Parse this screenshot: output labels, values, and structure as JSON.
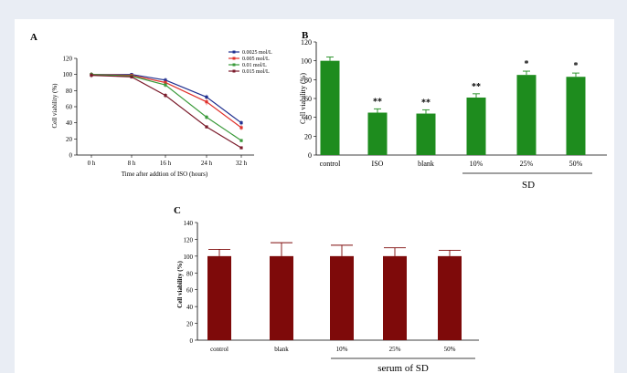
{
  "chart_data": [
    {
      "panel": "A",
      "type": "line",
      "xlabel": "Time after addtion of ISO (hours)",
      "ylabel": "Cell viability (%)",
      "categories": [
        "0 h",
        "8 h",
        "16 h",
        "24 h",
        "32 h"
      ],
      "ylim": [
        0,
        120
      ],
      "yticks": [
        0,
        20,
        40,
        60,
        80,
        100,
        120
      ],
      "legend_position": "top-right",
      "series": [
        {
          "name": "0.0025 mol/L",
          "color": "#1f2f8f",
          "values": [
            100,
            100,
            93,
            72,
            40
          ],
          "errors": [
            3,
            2,
            3,
            3,
            3
          ]
        },
        {
          "name": "0.005 mol/L",
          "color": "#e0302a",
          "values": [
            100,
            99,
            90,
            66,
            34
          ],
          "errors": [
            3,
            2,
            3,
            4,
            3
          ]
        },
        {
          "name": "0.01 mol/L",
          "color": "#3a9a3a",
          "values": [
            100,
            98,
            87,
            47,
            18
          ],
          "errors": [
            3,
            2,
            3,
            3,
            2
          ]
        },
        {
          "name": "0.015 mol/L",
          "color": "#7a1a2a",
          "values": [
            99,
            97,
            74,
            35,
            9
          ],
          "errors": [
            3,
            2,
            3,
            2,
            1
          ]
        }
      ]
    },
    {
      "panel": "B",
      "type": "bar",
      "ylabel": "Cell viability (%)",
      "categories": [
        "control",
        "ISO",
        "blank",
        "10%",
        "25%",
        "50%"
      ],
      "values": [
        100,
        45,
        44,
        61,
        85,
        83
      ],
      "errors": [
        4,
        4,
        4,
        4,
        4,
        4
      ],
      "significance": [
        "",
        "**",
        "**",
        "**",
        "*",
        "*"
      ],
      "ylim": [
        0,
        120
      ],
      "yticks": [
        0,
        20,
        40,
        60,
        80,
        100,
        120
      ],
      "group_label": "SD",
      "bar_color": "#1e8c1e"
    },
    {
      "panel": "C",
      "type": "bar",
      "ylabel": "Cell viability (%)",
      "categories": [
        "control",
        "blank",
        "10%",
        "25%",
        "50%"
      ],
      "values": [
        100,
        100,
        100,
        100,
        100
      ],
      "errors": [
        8,
        16,
        13,
        10,
        7
      ],
      "ylim": [
        0,
        140
      ],
      "yticks": [
        0,
        20,
        40,
        60,
        80,
        100,
        120,
        140
      ],
      "group_label": "serum of SD",
      "bar_color": "#7e0a0a"
    }
  ]
}
